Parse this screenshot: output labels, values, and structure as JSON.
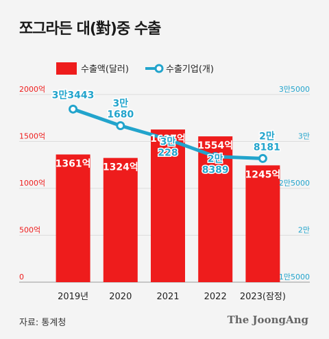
{
  "title": "쪼그라든 대(對)중 수출",
  "source": "자료: 통계청",
  "brand": "The JoongAng",
  "colors": {
    "bar": "#ee1c1c",
    "line": "#22a4cc",
    "left_axis": "#ee1c1c",
    "right_axis": "#22a4cc"
  },
  "chart_data": {
    "type": "bar+line",
    "categories": [
      "2019년",
      "2020",
      "2021",
      "2022",
      "2023(잠정)"
    ],
    "series": [
      {
        "name": "수출액(달러)",
        "type": "bar",
        "axis": "left",
        "values": [
          1361,
          1324,
          1627,
          1554,
          1245
        ],
        "labels": [
          "1361억",
          "1324억",
          "1627억",
          "1554억",
          "1245억"
        ]
      },
      {
        "name": "수출기업(개)",
        "type": "line",
        "axis": "right",
        "values": [
          33443,
          31680,
          30228,
          28389,
          28181
        ],
        "labels": [
          [
            "3만3443"
          ],
          [
            "3만",
            "1680"
          ],
          [
            "3만",
            "228"
          ],
          [
            "2만",
            "8389"
          ],
          [
            "2만",
            "8181"
          ]
        ]
      }
    ],
    "left_axis": {
      "ticks": [
        "0",
        "500억",
        "1000억",
        "1500억",
        "2000억"
      ],
      "values": [
        0,
        500,
        1000,
        1500,
        2000
      ],
      "ylim": [
        0,
        2000
      ]
    },
    "right_axis": {
      "ticks": [
        "1만5000",
        "2만",
        "2만5000",
        "3만",
        "3만5000"
      ],
      "values": [
        15000,
        20000,
        25000,
        30000,
        35000
      ],
      "ylim": [
        15000,
        35000
      ]
    },
    "legend_position": "top"
  }
}
